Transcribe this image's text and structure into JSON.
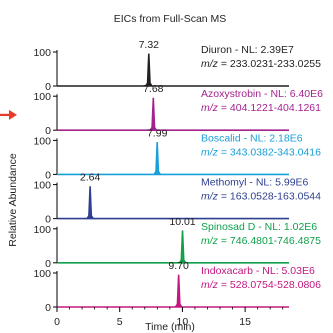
{
  "chart_data": {
    "type": "line",
    "title": "EICs from Full-Scan MS",
    "xlabel": "Time (min)",
    "ylabel": "Relative Abundance",
    "xlim": [
      0,
      18.5
    ],
    "x_ticks": [
      0,
      5,
      10,
      15
    ],
    "ylim": [
      0,
      100
    ],
    "y_tick_labels": [
      "0",
      "100"
    ],
    "grid": false,
    "colors": {
      "axis": "#000000",
      "text": "#231f20",
      "arrow": "#e8392b"
    },
    "series": [
      {
        "name": "Diuron",
        "nl": "Diuron - NL: 2.39E7",
        "mz_prefix": "m/z",
        "mz_range": " = 233.0231-233.0255",
        "peak_rt": 7.32,
        "peak_label": "7.32",
        "color": "#231f20",
        "label_color": "#231f20"
      },
      {
        "name": "Azoxystrobin",
        "nl": "Azoxystrobin - NL: 6.40E6",
        "mz_prefix": "m/z",
        "mz_range": " = 404.1221-404.1261",
        "peak_rt": 7.68,
        "peak_label": "7.68",
        "color": "#a3238e",
        "label_color": "#a3238e"
      },
      {
        "name": "Boscalid",
        "nl": "Boscalid - NL: 2.18E6",
        "mz_prefix": "m/z",
        "mz_range": " = 343.0382-343.0416",
        "peak_rt": 7.99,
        "peak_label": "7.99",
        "color": "#1aa0d8",
        "label_color": "#1aa0d8"
      },
      {
        "name": "Methomyl",
        "nl": "Methomyl - NL: 5.99E6",
        "mz_prefix": "m/z",
        "mz_range": " = 163.0528-163.0544",
        "peak_rt": 2.64,
        "peak_label": "2.64",
        "color": "#2e3f8f",
        "label_color": "#2e3f8f"
      },
      {
        "name": "Spinosad D",
        "nl": "Spinosad D - NL: 1.02E6",
        "mz_prefix": "m/z",
        "mz_range": " = 746.4801-746.4875",
        "peak_rt": 10.01,
        "peak_label": "10.01",
        "color": "#10a14a",
        "label_color": "#10a14a"
      },
      {
        "name": "Indoxacarb",
        "nl": "Indoxacarb - NL: 5.03E6",
        "mz_prefix": "m/z",
        "mz_range": " = 528.0754-528.0806",
        "peak_rt": 9.7,
        "peak_label": "9.70",
        "color": "#c2187f",
        "label_color": "#c2187f"
      }
    ]
  }
}
